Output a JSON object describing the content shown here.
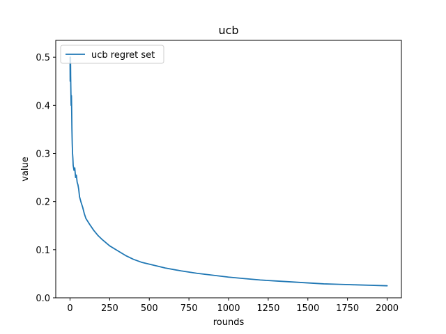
{
  "chart_data": {
    "type": "line",
    "title": "ucb",
    "xlabel": "rounds",
    "ylabel": "value",
    "xlim": [
      -90,
      2090
    ],
    "ylim": [
      0,
      0.535
    ],
    "xticks": [
      0,
      250,
      500,
      750,
      1000,
      1250,
      1500,
      1750,
      2000
    ],
    "yticks": [
      0.0,
      0.1,
      0.2,
      0.3,
      0.4,
      0.5
    ],
    "xtick_labels": [
      "0",
      "250",
      "500",
      "750",
      "1000",
      "1250",
      "1500",
      "1750",
      "2000"
    ],
    "ytick_labels": [
      "0.0",
      "0.1",
      "0.2",
      "0.3",
      "0.4",
      "0.5"
    ],
    "legend": {
      "position": "top-left"
    },
    "series": [
      {
        "name": "ucb regret set",
        "color": "#1f77b4",
        "x": [
          0,
          1,
          2,
          3,
          4,
          5,
          6,
          7,
          8,
          9,
          10,
          12,
          14,
          16,
          18,
          20,
          25,
          30,
          35,
          40,
          45,
          50,
          55,
          60,
          70,
          80,
          90,
          100,
          125,
          150,
          175,
          200,
          250,
          300,
          350,
          400,
          450,
          500,
          600,
          700,
          800,
          900,
          1000,
          1100,
          1200,
          1300,
          1400,
          1500,
          1600,
          1700,
          1800,
          1900,
          2000
        ],
        "values": [
          0.5,
          0.45,
          0.48,
          0.5,
          0.46,
          0.44,
          0.42,
          0.4,
          0.41,
          0.42,
          0.4,
          0.35,
          0.32,
          0.3,
          0.29,
          0.275,
          0.265,
          0.27,
          0.25,
          0.255,
          0.24,
          0.235,
          0.225,
          0.21,
          0.198,
          0.188,
          0.175,
          0.165,
          0.152,
          0.14,
          0.13,
          0.122,
          0.108,
          0.098,
          0.088,
          0.08,
          0.074,
          0.07,
          0.062,
          0.056,
          0.051,
          0.047,
          0.043,
          0.04,
          0.037,
          0.035,
          0.033,
          0.031,
          0.029,
          0.028,
          0.027,
          0.026,
          0.025
        ]
      }
    ]
  }
}
